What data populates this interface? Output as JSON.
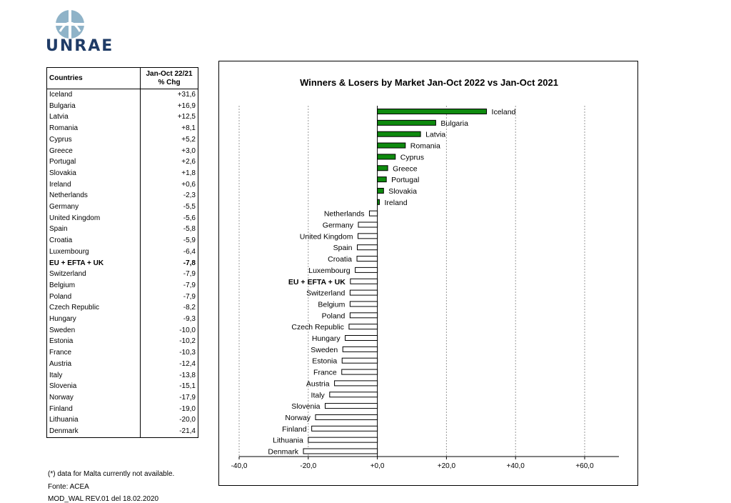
{
  "logo": {
    "text": "UNRAE"
  },
  "table": {
    "header_country": "Countries",
    "header_chg_line1": "Jan-Oct 22/21",
    "header_chg_line2": "% Chg",
    "rows": [
      {
        "country": "Iceland",
        "chg": "+31,6"
      },
      {
        "country": "Bulgaria",
        "chg": "+16,9"
      },
      {
        "country": "Latvia",
        "chg": "+12,5"
      },
      {
        "country": "Romania",
        "chg": "+8,1"
      },
      {
        "country": "Cyprus",
        "chg": "+5,2"
      },
      {
        "country": "Greece",
        "chg": "+3,0"
      },
      {
        "country": "Portugal",
        "chg": "+2,6"
      },
      {
        "country": "Slovakia",
        "chg": "+1,8"
      },
      {
        "country": "Ireland",
        "chg": "+0,6"
      },
      {
        "country": "Netherlands",
        "chg": "-2,3"
      },
      {
        "country": "Germany",
        "chg": "-5,5"
      },
      {
        "country": "United Kingdom",
        "chg": "-5,6"
      },
      {
        "country": "Spain",
        "chg": "-5,8"
      },
      {
        "country": "Croatia",
        "chg": "-5,9"
      },
      {
        "country": "Luxembourg",
        "chg": "-6,4"
      },
      {
        "country": "EU + EFTA + UK",
        "chg": "-7,8",
        "bold": true
      },
      {
        "country": "Switzerland",
        "chg": "-7,9"
      },
      {
        "country": "Belgium",
        "chg": "-7,9"
      },
      {
        "country": "Poland",
        "chg": "-7,9"
      },
      {
        "country": "Czech Republic",
        "chg": "-8,2"
      },
      {
        "country": "Hungary",
        "chg": "-9,3"
      },
      {
        "country": "Sweden",
        "chg": "-10,0"
      },
      {
        "country": "Estonia",
        "chg": "-10,2"
      },
      {
        "country": "France",
        "chg": "-10,3"
      },
      {
        "country": "Austria",
        "chg": "-12,4"
      },
      {
        "country": "Italy",
        "chg": "-13,8"
      },
      {
        "country": "Slovenia",
        "chg": "-15,1"
      },
      {
        "country": "Norway",
        "chg": "-17,9"
      },
      {
        "country": "Finland",
        "chg": "-19,0"
      },
      {
        "country": "Lithuania",
        "chg": "-20,0"
      },
      {
        "country": "Denmark",
        "chg": "-21,4"
      }
    ]
  },
  "footer": {
    "note": "(*) data for Malta currently not available.",
    "source": "Fonte: ACEA",
    "model": "MOD_WAL REV.01 del 18.02.2020"
  },
  "colors": {
    "positive": "#0e8a0e",
    "negative": "#ffffff",
    "bar_stroke": "#000000",
    "grid": "#999999"
  },
  "chart_data": {
    "type": "bar",
    "orientation": "horizontal",
    "title": "Winners & Losers by Market  Jan-Oct 2022 vs Jan-Oct 2021",
    "xlim": [
      -40,
      60
    ],
    "xticks": [
      -40,
      -20,
      0,
      20,
      40,
      60
    ],
    "xtick_labels": [
      "-40,0",
      "-20,0",
      "+0,0",
      "+20,0",
      "+40,0",
      "+60,0"
    ],
    "grid": "vertical dashed",
    "legend": "none",
    "categories": [
      "Iceland",
      "Bulgaria",
      "Latvia",
      "Romania",
      "Cyprus",
      "Greece",
      "Portugal",
      "Slovakia",
      "Ireland",
      "Netherlands",
      "Germany",
      "United Kingdom",
      "Spain",
      "Croatia",
      "Luxembourg",
      "EU + EFTA + UK",
      "Switzerland",
      "Belgium",
      "Poland",
      "Czech Republic",
      "Hungary",
      "Sweden",
      "Estonia",
      "France",
      "Austria",
      "Italy",
      "Slovenia",
      "Norway",
      "Finland",
      "Lithuania",
      "Denmark"
    ],
    "values": [
      31.6,
      16.9,
      12.5,
      8.1,
      5.2,
      3.0,
      2.6,
      1.8,
      0.6,
      -2.3,
      -5.5,
      -5.6,
      -5.8,
      -5.9,
      -6.4,
      -7.8,
      -7.9,
      -7.9,
      -7.9,
      -8.2,
      -9.3,
      -10.0,
      -10.2,
      -10.3,
      -12.4,
      -13.8,
      -15.1,
      -17.9,
      -19.0,
      -20.0,
      -21.4
    ],
    "bold_categories": [
      "EU + EFTA + UK"
    ]
  }
}
